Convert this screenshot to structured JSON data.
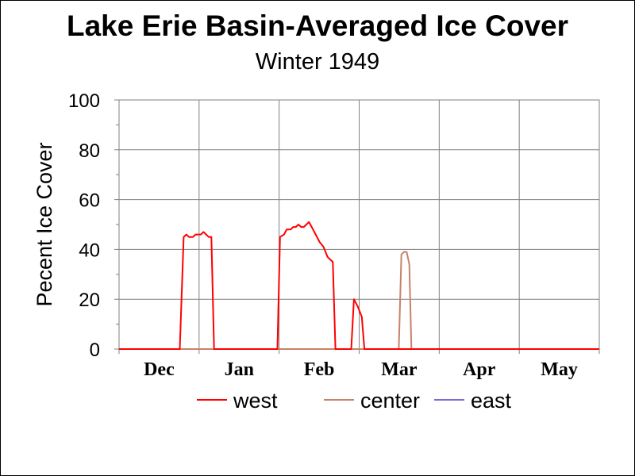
{
  "chart_data": {
    "type": "line",
    "title": "Lake Erie Basin-Averaged Ice Cover",
    "subtitle": "Winter 1949",
    "xlabel": "",
    "ylabel": "Pecent Ice Cover",
    "ylim": [
      0,
      100
    ],
    "yticks": [
      "0",
      "20",
      "40",
      "60",
      "80",
      "100"
    ],
    "xlim": [
      0,
      182
    ],
    "month_labels": [
      "Dec",
      "Jan",
      "Feb",
      "Mar",
      "Apr",
      "May"
    ],
    "grid": true,
    "legend_position": "bottom",
    "series": [
      {
        "name": "west",
        "color": "#ff0000",
        "points": [
          [
            0,
            0
          ],
          [
            23,
            0
          ],
          [
            24.5,
            45
          ],
          [
            25.5,
            46
          ],
          [
            26.5,
            45
          ],
          [
            28,
            45
          ],
          [
            29,
            46
          ],
          [
            31,
            46
          ],
          [
            32,
            47
          ],
          [
            33,
            46
          ],
          [
            34,
            45
          ],
          [
            35,
            45
          ],
          [
            36,
            0
          ],
          [
            60,
            0
          ],
          [
            61,
            45
          ],
          [
            62.5,
            46
          ],
          [
            63.5,
            48
          ],
          [
            65,
            48
          ],
          [
            66,
            49
          ],
          [
            67,
            49
          ],
          [
            68,
            50
          ],
          [
            69,
            49
          ],
          [
            70,
            49
          ],
          [
            71,
            50
          ],
          [
            72,
            51
          ],
          [
            73,
            49
          ],
          [
            74.5,
            46
          ],
          [
            76,
            43
          ],
          [
            77.5,
            41
          ],
          [
            79,
            37
          ],
          [
            80,
            36
          ],
          [
            81,
            35
          ],
          [
            82,
            0
          ],
          [
            88,
            0
          ],
          [
            89,
            20
          ],
          [
            90.5,
            17
          ],
          [
            92,
            13
          ],
          [
            93,
            0
          ],
          [
            182,
            0
          ]
        ]
      },
      {
        "name": "center",
        "color": "#c8826a",
        "points": [
          [
            0,
            0
          ],
          [
            106,
            0
          ],
          [
            107,
            38
          ],
          [
            108,
            39
          ],
          [
            109,
            39
          ],
          [
            110,
            34
          ],
          [
            110.8,
            0
          ],
          [
            182,
            0
          ]
        ]
      },
      {
        "name": "east",
        "color": "#7a6cd8",
        "points": [
          [
            0,
            0
          ],
          [
            182,
            0
          ]
        ]
      }
    ]
  }
}
